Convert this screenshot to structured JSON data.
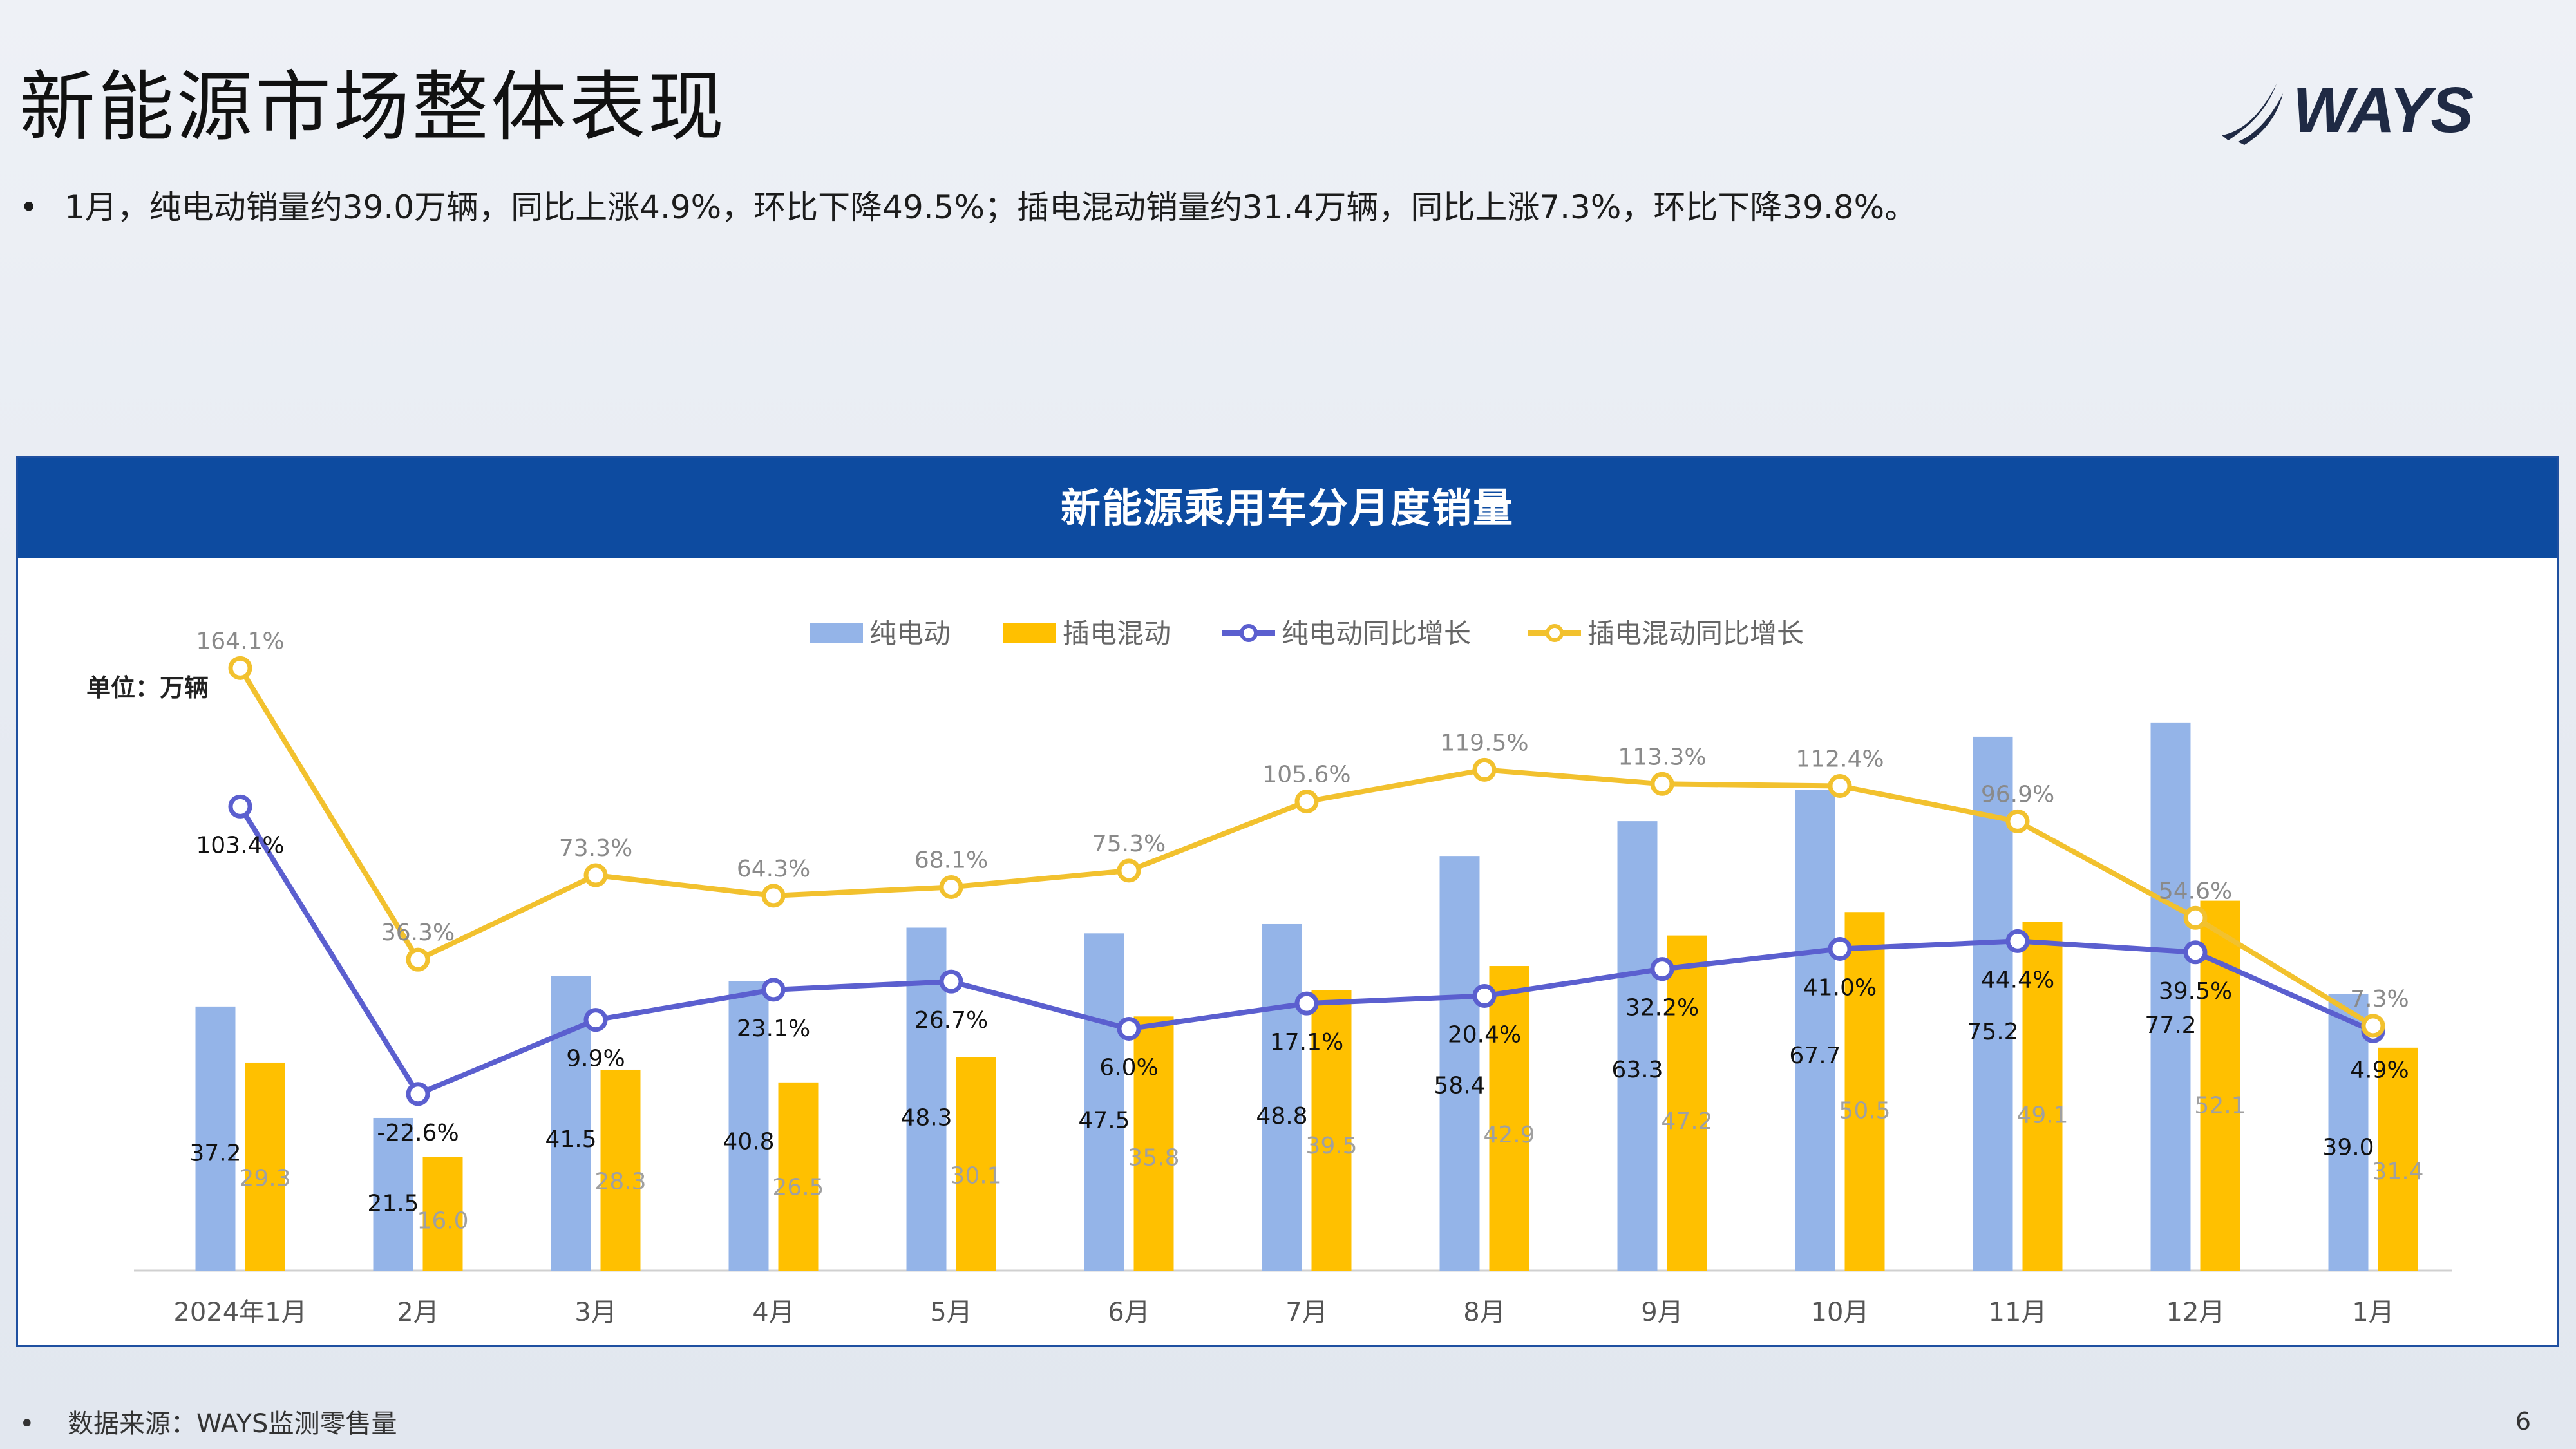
{
  "page": {
    "title": "新能源市场整体表现",
    "bullet_dot": "•",
    "bullet_text": "1月，纯电动销量约39.0万辆，同比上涨4.9%，环比下降49.5%；插电混动销量约31.4万辆，同比上涨7.3%，环比下降39.8%。",
    "source_dot": "•",
    "source_text": "数据来源：WAYS监测零售量",
    "page_number": "6",
    "logo_text": "WAYS"
  },
  "chart_data": {
    "type": "bar",
    "title": "新能源乘用车分月度销量",
    "unit_label": "单位：万辆",
    "categories": [
      "2024年1月",
      "2月",
      "3月",
      "4月",
      "5月",
      "6月",
      "7月",
      "8月",
      "9月",
      "10月",
      "11月",
      "12月",
      "1月"
    ],
    "series": [
      {
        "name": "纯电动",
        "kind": "bar",
        "color": "#94b4e8",
        "label_color": "#111111",
        "values": [
          37.2,
          21.5,
          41.5,
          40.8,
          48.3,
          47.5,
          48.8,
          58.4,
          63.3,
          67.7,
          75.2,
          77.2,
          39.0
        ]
      },
      {
        "name": "插电混动",
        "kind": "bar",
        "color": "#ffc000",
        "label_color": "#a0a0a0",
        "values": [
          29.3,
          16.0,
          28.3,
          26.5,
          30.1,
          35.8,
          39.5,
          42.9,
          47.2,
          50.5,
          49.1,
          52.1,
          31.4
        ]
      },
      {
        "name": "纯电动同比增长",
        "kind": "line",
        "color": "#5b5fcf",
        "label_color": "#111111",
        "unit": "%",
        "values": [
          103.4,
          -22.6,
          9.9,
          23.1,
          26.7,
          6.0,
          17.1,
          20.4,
          32.2,
          41.0,
          44.4,
          39.5,
          4.9
        ]
      },
      {
        "name": "插电混动同比增长",
        "kind": "line",
        "color": "#f2c12e",
        "label_color": "#8a8a8a",
        "unit": "%",
        "values": [
          164.1,
          36.3,
          73.3,
          64.3,
          68.1,
          75.3,
          105.6,
          119.5,
          113.3,
          112.4,
          96.9,
          54.6,
          7.3
        ]
      }
    ],
    "bar_axis": {
      "ylim": [
        0,
        80
      ]
    },
    "line_axis": {
      "ylim": [
        -100,
        180
      ]
    },
    "legend_position": "top-center",
    "grid": false
  },
  "colors": {
    "header_bg": "#0d4ba0",
    "accent_blue": "#94b4e8",
    "accent_yellow": "#ffc000"
  }
}
